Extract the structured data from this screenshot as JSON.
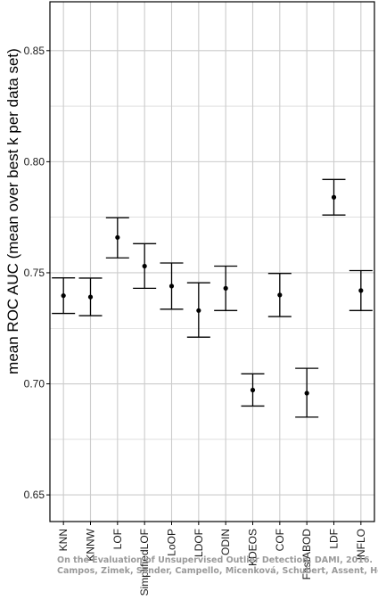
{
  "chart_data": {
    "type": "scatter",
    "subtype": "point-with-error-bars",
    "title": "",
    "xlabel": "",
    "ylabel": "mean ROC AUC (mean over best k per data set)",
    "ylim": [
      0.638,
      0.872
    ],
    "yticks": [
      0.65,
      0.7,
      0.75,
      0.8,
      0.85
    ],
    "ytick_labels": [
      "0.65",
      "0.70",
      "0.75",
      "0.80",
      "0.85"
    ],
    "grid": true,
    "legend": "none",
    "colors": {
      "point": "#000000",
      "errorbar": "#000000",
      "grid": "#cccccc",
      "axis": "#000000"
    },
    "categories": [
      "KNN",
      "KNNW",
      "LOF",
      "SimplifiedLOF",
      "LoOP",
      "LDOF",
      "ODIN",
      "KDEOS",
      "COF",
      "FastABOD",
      "LDF",
      "INFLO"
    ],
    "series": [
      {
        "values": [
          0.7397,
          0.7391,
          0.7659,
          0.753,
          0.744,
          0.733,
          0.743,
          0.6972,
          0.74,
          0.6958,
          0.784,
          0.742
        ],
        "lower": [
          0.7317,
          0.7307,
          0.7567,
          0.743,
          0.7336,
          0.721,
          0.733,
          0.69,
          0.7303,
          0.685,
          0.776,
          0.733
        ],
        "upper": [
          0.7477,
          0.7476,
          0.7748,
          0.7631,
          0.7544,
          0.7455,
          0.753,
          0.7045,
          0.7497,
          0.707,
          0.792,
          0.751
        ]
      }
    ]
  },
  "watermark": {
    "line1": "On the Evaluation of Unsupervised Outlier Detection, DAMI, 2016.",
    "line2": "Campos, Zimek, Sander, Campello, Micenková, Schubert, Assent, Houle"
  }
}
